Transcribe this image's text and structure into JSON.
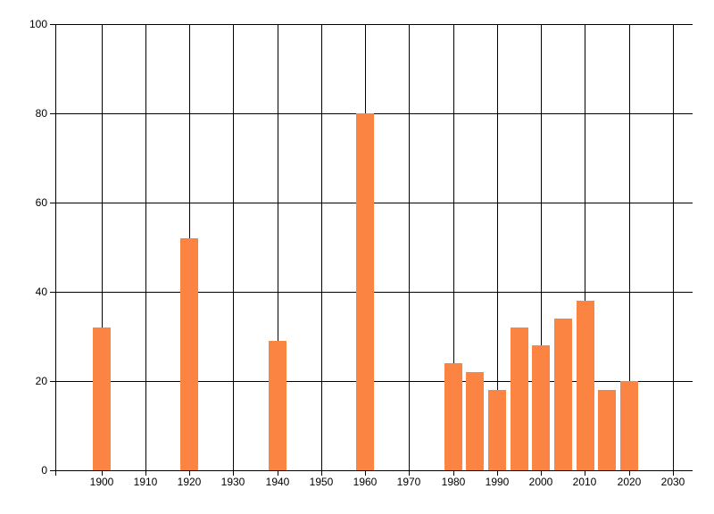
{
  "chart_data": {
    "type": "bar",
    "title": "",
    "xlabel": "",
    "ylabel": "",
    "x": [
      1900,
      1920,
      1940,
      1960,
      1980,
      1985,
      1990,
      1995,
      2000,
      2005,
      2010,
      2015,
      2020
    ],
    "values": [
      32,
      52,
      29,
      80,
      24,
      22,
      18,
      32,
      28,
      34,
      38,
      18,
      20
    ],
    "bar_width_years": 4,
    "xlim": [
      1889.5,
      2034.5
    ],
    "ylim": [
      0,
      100
    ],
    "x_ticks": [
      1900,
      1910,
      1920,
      1930,
      1940,
      1950,
      1960,
      1970,
      1980,
      1990,
      2000,
      2010,
      2020,
      2030
    ],
    "y_ticks": [
      0,
      20,
      40,
      60,
      80,
      100
    ],
    "grid": "on",
    "legend": "none",
    "colors": {
      "bar": "#FB8442",
      "grid": "#000000",
      "axis": "#000000",
      "text": "#000000",
      "background": "#FFFFFF"
    }
  }
}
